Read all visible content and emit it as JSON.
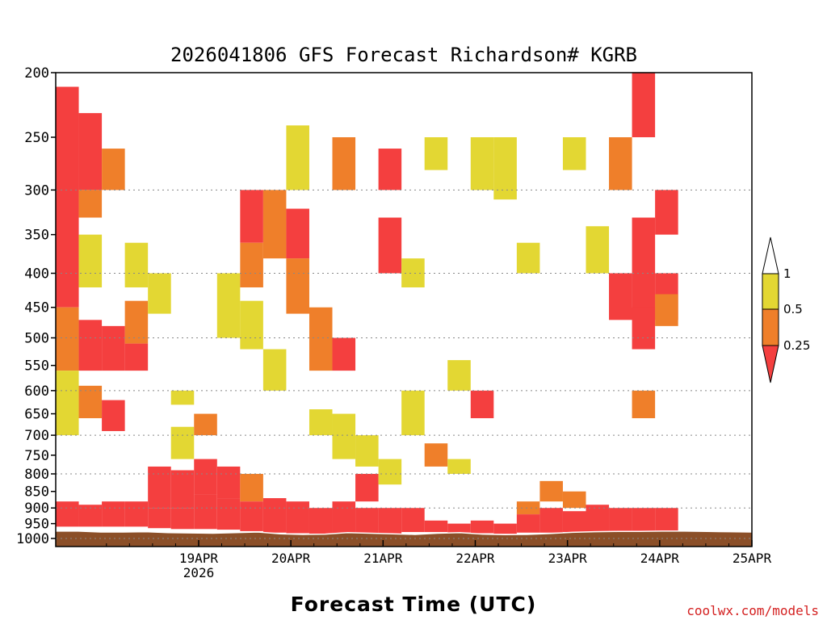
{
  "chart_data": {
    "type": "heatmap",
    "title": "2026041806 GFS Forecast Richardson# KGRB",
    "xlabel": "Forecast Time (UTC)",
    "ylabel": "",
    "credit": "coolwx.com/models",
    "x_ticks": [
      {
        "label": "19APR",
        "sub": "2026",
        "day": 1.0
      },
      {
        "label": "20APR",
        "sub": "",
        "day": 2.0
      },
      {
        "label": "21APR",
        "sub": "",
        "day": 3.0
      },
      {
        "label": "22APR",
        "sub": "",
        "day": 4.0
      },
      {
        "label": "23APR",
        "sub": "",
        "day": 5.0
      },
      {
        "label": "24APR",
        "sub": "",
        "day": 6.0
      },
      {
        "label": "25APR",
        "sub": "",
        "day": 7.0
      }
    ],
    "x_range_days_since_19APR": [
      -0.55,
      7.0
    ],
    "y_ticks": [
      "200",
      "250",
      "300",
      "350",
      "400",
      "450",
      "500",
      "550",
      "600",
      "650",
      "700",
      "750",
      "800",
      "850",
      "900",
      "950",
      "1000"
    ],
    "y_gridlines": [
      300,
      400,
      500,
      600,
      700,
      800,
      900,
      1000
    ],
    "y_range_hPa": [
      200,
      1000
    ],
    "y_scale": "log-pressure",
    "legend": {
      "placement": "right",
      "levels": [
        "1",
        "0.5",
        "0.25"
      ],
      "bins": [
        {
          "range": "> 1",
          "color": "#ffffff"
        },
        {
          "range": "0.5 – 1",
          "color": "#e3d733"
        },
        {
          "range": "0.25 – 0.5",
          "color": "#ef7f2a"
        },
        {
          "range": "< 0.25",
          "color": "#f43f3f"
        }
      ]
    },
    "colors": {
      "lt_025": "#f43f3f",
      "b025_05": "#ef7f2a",
      "b05_1": "#e3d733",
      "ground": "#8b4f28"
    },
    "surface_pressure_hPa": [
      975,
      975,
      978,
      978,
      977,
      980,
      981,
      982,
      980,
      978,
      984,
      986,
      985,
      980,
      982,
      984,
      986,
      982,
      980,
      985,
      987,
      986,
      983,
      979,
      977,
      976,
      976,
      975,
      975,
      976,
      977,
      978
    ],
    "bins_by_hour": [
      {
        "h": 0,
        "cells": [
          [
            210,
            450,
            0
          ],
          [
            450,
            560,
            1
          ],
          [
            560,
            700,
            2
          ],
          [
            880,
            960,
            0
          ]
        ]
      },
      {
        "h": 6,
        "cells": [
          [
            230,
            300,
            0
          ],
          [
            300,
            330,
            1
          ],
          [
            350,
            420,
            2
          ],
          [
            470,
            560,
            0
          ],
          [
            590,
            660,
            1
          ],
          [
            890,
            960,
            0
          ]
        ]
      },
      {
        "h": 12,
        "cells": [
          [
            260,
            300,
            1
          ],
          [
            480,
            560,
            0
          ],
          [
            620,
            690,
            0
          ],
          [
            880,
            960,
            0
          ]
        ]
      },
      {
        "h": 18,
        "cells": [
          [
            360,
            420,
            2
          ],
          [
            440,
            510,
            1
          ],
          [
            510,
            560,
            0
          ],
          [
            880,
            960,
            0
          ]
        ]
      },
      {
        "h": 24,
        "cells": [
          [
            400,
            460,
            2
          ],
          [
            780,
            840,
            0
          ],
          [
            840,
            900,
            0
          ],
          [
            900,
            965,
            0
          ]
        ]
      },
      {
        "h": 30,
        "cells": [
          [
            600,
            630,
            2
          ],
          [
            680,
            760,
            2
          ],
          [
            790,
            900,
            0
          ],
          [
            900,
            968,
            0
          ]
        ]
      },
      {
        "h": 36,
        "cells": [
          [
            650,
            700,
            1
          ],
          [
            760,
            860,
            0
          ],
          [
            860,
            968,
            0
          ]
        ]
      },
      {
        "h": 42,
        "cells": [
          [
            400,
            500,
            2
          ],
          [
            780,
            870,
            0
          ],
          [
            870,
            970,
            0
          ]
        ]
      },
      {
        "h": 48,
        "cells": [
          [
            300,
            360,
            0
          ],
          [
            360,
            420,
            1
          ],
          [
            440,
            520,
            2
          ],
          [
            800,
            880,
            1
          ],
          [
            880,
            975,
            0
          ]
        ]
      },
      {
        "h": 54,
        "cells": [
          [
            300,
            380,
            1
          ],
          [
            520,
            600,
            2
          ],
          [
            870,
            980,
            0
          ]
        ]
      },
      {
        "h": 60,
        "cells": [
          [
            240,
            300,
            2
          ],
          [
            320,
            380,
            0
          ],
          [
            380,
            460,
            1
          ],
          [
            880,
            982,
            0
          ]
        ]
      },
      {
        "h": 66,
        "cells": [
          [
            450,
            560,
            1
          ],
          [
            640,
            700,
            2
          ],
          [
            900,
            984,
            0
          ]
        ]
      },
      {
        "h": 72,
        "cells": [
          [
            250,
            300,
            1
          ],
          [
            500,
            560,
            0
          ],
          [
            650,
            760,
            2
          ],
          [
            880,
            985,
            0
          ]
        ]
      },
      {
        "h": 78,
        "cells": [
          [
            700,
            780,
            2
          ],
          [
            800,
            880,
            0
          ],
          [
            900,
            984,
            0
          ]
        ]
      },
      {
        "h": 84,
        "cells": [
          [
            260,
            300,
            0
          ],
          [
            330,
            400,
            0
          ],
          [
            760,
            830,
            2
          ],
          [
            900,
            985,
            0
          ]
        ]
      },
      {
        "h": 90,
        "cells": [
          [
            380,
            420,
            2
          ],
          [
            600,
            700,
            2
          ],
          [
            900,
            978,
            0
          ]
        ]
      },
      {
        "h": 96,
        "cells": [
          [
            250,
            280,
            2
          ],
          [
            720,
            780,
            1
          ],
          [
            940,
            978,
            0
          ]
        ]
      },
      {
        "h": 102,
        "cells": [
          [
            540,
            600,
            2
          ],
          [
            760,
            800,
            2
          ],
          [
            950,
            980,
            0
          ]
        ]
      },
      {
        "h": 108,
        "cells": [
          [
            250,
            300,
            2
          ],
          [
            600,
            660,
            0
          ],
          [
            940,
            982,
            0
          ]
        ]
      },
      {
        "h": 114,
        "cells": [
          [
            250,
            310,
            2
          ],
          [
            950,
            984,
            0
          ]
        ]
      },
      {
        "h": 120,
        "cells": [
          [
            360,
            400,
            2
          ],
          [
            880,
            920,
            1
          ],
          [
            920,
            980,
            0
          ]
        ]
      },
      {
        "h": 126,
        "cells": [
          [
            820,
            880,
            1
          ],
          [
            900,
            980,
            0
          ]
        ]
      },
      {
        "h": 132,
        "cells": [
          [
            250,
            280,
            2
          ],
          [
            850,
            900,
            1
          ],
          [
            910,
            978,
            0
          ]
        ]
      },
      {
        "h": 138,
        "cells": [
          [
            340,
            400,
            2
          ],
          [
            890,
            978,
            0
          ]
        ]
      },
      {
        "h": 144,
        "cells": [
          [
            250,
            300,
            1
          ],
          [
            400,
            470,
            0
          ],
          [
            900,
            976,
            0
          ]
        ]
      },
      {
        "h": 150,
        "cells": [
          [
            200,
            250,
            0
          ],
          [
            330,
            400,
            0
          ],
          [
            400,
            470,
            0
          ],
          [
            450,
            520,
            0
          ],
          [
            600,
            660,
            1
          ],
          [
            900,
            976,
            0
          ]
        ]
      },
      {
        "h": 156,
        "cells": [
          [
            300,
            350,
            0
          ],
          [
            400,
            470,
            0
          ],
          [
            430,
            480,
            1
          ],
          [
            900,
            975,
            0
          ]
        ]
      }
    ]
  }
}
